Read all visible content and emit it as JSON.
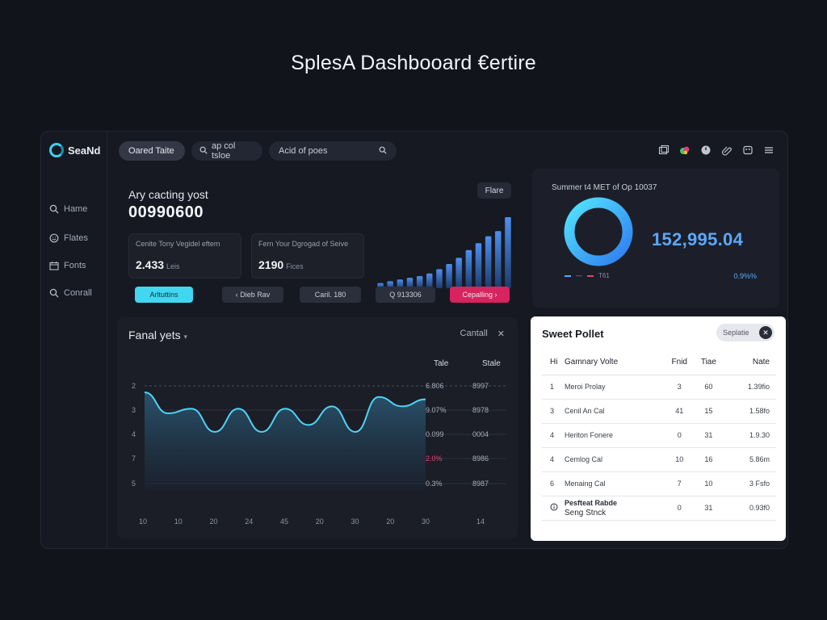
{
  "page_title": "SplesA Dashbooard €ertire",
  "app": {
    "brand": "SeaNd",
    "topbar": {
      "active_tab": "Oared Taite",
      "search1_placeholder": "ap col tsloe",
      "search2_placeholder": "Acid of poes"
    },
    "top_icons": [
      "folder-icon",
      "palette-icon",
      "clock-icon",
      "link-icon",
      "image-icon",
      "menu-icon"
    ],
    "sidebar": [
      {
        "label": "Hame",
        "icon": "search-icon"
      },
      {
        "label": "Flates",
        "icon": "smile-icon"
      },
      {
        "label": "Fonts",
        "icon": "calendar-icon"
      },
      {
        "label": "Conrall",
        "icon": "search-icon"
      }
    ],
    "kpi": {
      "title": "Ary cacting yost",
      "value": "00990600",
      "badge": "Flare",
      "mini": [
        {
          "label": "Cenite Tony Vegidel eftem",
          "value": "2.433",
          "sub": "Leis"
        },
        {
          "label": "Fern Your Dgrogad of Seive",
          "value": "2190",
          "sub": "Fices"
        }
      ],
      "buttons": {
        "cyan": "Arltuttins",
        "dark1": "‹ Dieb Rav",
        "dark2": "Caril. 180",
        "dark3": "Q 913306",
        "pink": "Cepalling ›"
      }
    },
    "summary": {
      "title": "Summer t4 MET of Op 10037",
      "value": "152,995.04",
      "legend_a": "—",
      "legend_b": "T61",
      "pct": "0.9%%",
      "colors": {
        "ring": "#3fb8ff",
        "value": "#5aa8ff"
      }
    },
    "line_chart": {
      "title": "Fanal yets",
      "control_label": "Cantall",
      "col_headers": [
        "Tale",
        "Stale"
      ],
      "rows": [
        {
          "y": "2",
          "a": "6.806",
          "b": "8997",
          "highlight": false
        },
        {
          "y": "3",
          "a": "9.07%",
          "b": "8978",
          "highlight": false
        },
        {
          "y": "4",
          "a": "0.099",
          "b": "0004",
          "highlight": false
        },
        {
          "y": "7",
          "a": "2.0%",
          "b": "8986",
          "highlight": true
        },
        {
          "y": "5",
          "a": "0.3%",
          "b": "8987",
          "highlight": false
        }
      ],
      "x_ticks": [
        "10",
        "10",
        "20",
        "24",
        "45",
        "20",
        "30",
        "20",
        "30",
        "14"
      ]
    },
    "table": {
      "title": "Sweet Pollet",
      "button": "Seplatie",
      "headers": [
        "Hi",
        "Gamnary Volte",
        "Fnid",
        "Tiae",
        "Nate"
      ],
      "rows": [
        {
          "c1": "1",
          "c2": "Meroi Prolay",
          "c3": "3",
          "c4": "60",
          "c5": "1.39fio"
        },
        {
          "c1": "3",
          "c2": "Cenil An Cal",
          "c3": "41",
          "c4": "15",
          "c5": "1.58fo"
        },
        {
          "c1": "4",
          "c2": "Heriton Fonere",
          "c3": "0",
          "c4": "31",
          "c5": "1.9.30"
        },
        {
          "c1": "4",
          "c2": "Cemlog Cal",
          "c3": "10",
          "c4": "16",
          "c5": "5.86m"
        },
        {
          "c1": "6",
          "c2": "Menaing Cal",
          "c3": "7",
          "c4": "10",
          "c5": "3 Fsfo"
        }
      ],
      "last_row": {
        "c2a": "Pesfteat Rabde",
        "c2b": "Seng Stnck",
        "c3": "0",
        "c4": "31",
        "c5": "0.93f0"
      }
    }
  },
  "chart_data": [
    {
      "type": "bar",
      "values": [
        6,
        8,
        10,
        12,
        14,
        17,
        22,
        28,
        35,
        44,
        52,
        60,
        66,
        82
      ]
    },
    {
      "type": "area",
      "x": [
        0,
        1,
        2,
        3,
        4,
        5,
        6,
        7,
        8,
        9,
        10,
        11,
        12
      ],
      "values": [
        5.2,
        4.3,
        4.5,
        3.5,
        4.5,
        3.5,
        4.5,
        3.8,
        4.6,
        3.5,
        5.0,
        4.6,
        4.9
      ],
      "ylim": [
        1,
        6
      ]
    }
  ]
}
